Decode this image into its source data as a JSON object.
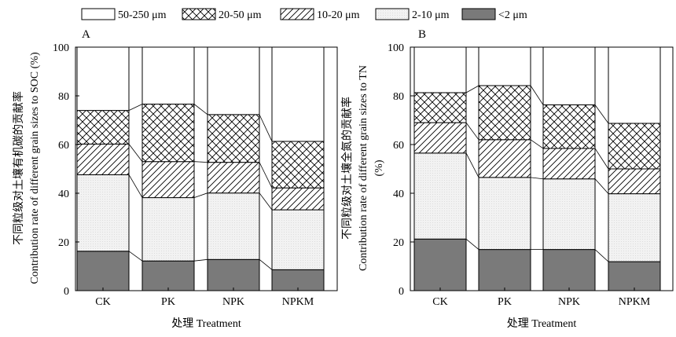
{
  "legend": [
    {
      "key": "g50_250",
      "label": "50-250 μm",
      "pattern": "white"
    },
    {
      "key": "g20_50",
      "label": "20-50 μm",
      "pattern": "crosshatch"
    },
    {
      "key": "g10_20",
      "label": "10-20 μm",
      "pattern": "diagonal"
    },
    {
      "key": "g2_10",
      "label": "2-10 μm",
      "pattern": "dots"
    },
    {
      "key": "g0_2",
      "label": "<2 μm",
      "pattern": "solid"
    }
  ],
  "colors": {
    "solid": "#7a7a7a",
    "dots": "#f2f2f2",
    "line": "#000000"
  },
  "chart_data": [
    {
      "type": "bar",
      "stacked": true,
      "panel_label": "A",
      "categories": [
        "CK",
        "PK",
        "NPK",
        "NPKM"
      ],
      "xlabel": "处理 Treatment",
      "ylabel_cn": "不同粒级对土壤有机碳的贡献率",
      "ylabel_en": "Contribution rate of different grain sizes to SOC (%)",
      "ylim": [
        0,
        100
      ],
      "yticks": [
        0,
        20,
        40,
        60,
        80,
        100
      ],
      "series": [
        {
          "name": "<2 μm",
          "values": [
            16.2,
            12.2,
            12.8,
            8.6
          ]
        },
        {
          "name": "2-10 μm",
          "values": [
            31.4,
            26.0,
            27.3,
            24.6
          ]
        },
        {
          "name": "10-20 μm",
          "values": [
            12.6,
            14.8,
            12.6,
            9.0
          ]
        },
        {
          "name": "20-50 μm",
          "values": [
            13.8,
            23.6,
            19.6,
            19.1
          ]
        },
        {
          "name": "50-250 μm",
          "values": [
            26.0,
            23.4,
            27.7,
            38.7
          ]
        }
      ]
    },
    {
      "type": "bar",
      "stacked": true,
      "panel_label": "B",
      "categories": [
        "CK",
        "PK",
        "NPK",
        "NPKM"
      ],
      "xlabel": "处理 Treatment",
      "ylabel_cn": "不同粒级对土壤全氮的贡献率",
      "ylabel_en": "Contribution rate of different grain sizes to TN",
      "ylabel_unit": "(%)",
      "ylim": [
        0,
        100
      ],
      "yticks": [
        0,
        20,
        40,
        60,
        80,
        100
      ],
      "series": [
        {
          "name": "<2 μm",
          "values": [
            21.2,
            16.9,
            16.9,
            11.9
          ]
        },
        {
          "name": "2-10 μm",
          "values": [
            35.3,
            29.6,
            29.0,
            27.9
          ]
        },
        {
          "name": "10-20 μm",
          "values": [
            12.5,
            15.5,
            12.5,
            10.2
          ]
        },
        {
          "name": "20-50 μm",
          "values": [
            12.3,
            22.2,
            17.9,
            18.7
          ]
        },
        {
          "name": "50-250 μm",
          "values": [
            18.7,
            15.8,
            23.7,
            31.3
          ]
        }
      ]
    }
  ]
}
